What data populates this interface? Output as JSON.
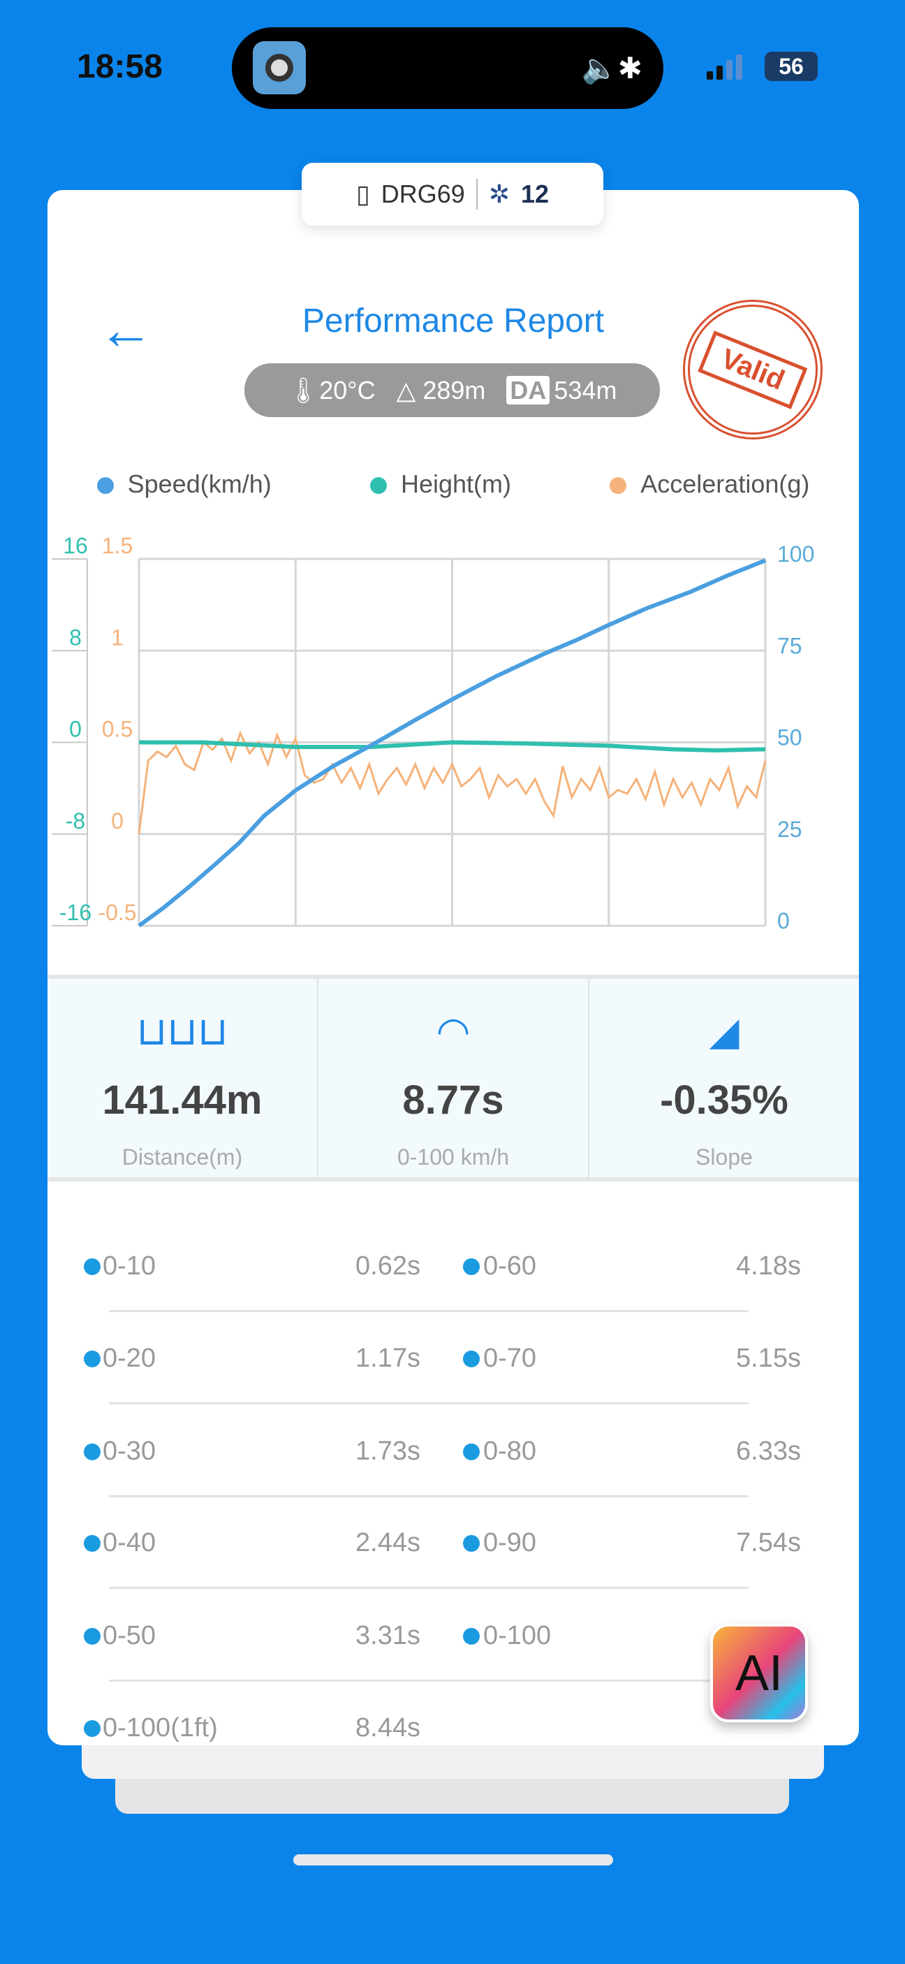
{
  "status": {
    "time": "18:58",
    "battery": "56"
  },
  "device": {
    "name": "DRG69",
    "satellites": "12"
  },
  "header": {
    "title": "Performance Report",
    "stamp": "Valid"
  },
  "env": {
    "temperature": "20°C",
    "altitude": "289m",
    "da_label": "DA",
    "density_altitude": "534m"
  },
  "chart_data": {
    "type": "line",
    "legend": [
      "Speed(km/h)",
      "Height(m)",
      "Acceleration(g)"
    ],
    "colors": {
      "speed": "#4a9fe0",
      "height": "#2fbfae",
      "accel": "#f5b27a"
    },
    "axes": {
      "height": {
        "ticks": [
          "16",
          "8",
          "0",
          "-8",
          "-16"
        ],
        "range": [
          -16,
          16
        ]
      },
      "accel": {
        "ticks": [
          "1.5",
          "1",
          "0.5",
          "0",
          "-0.5"
        ],
        "range": [
          -0.5,
          1.5
        ]
      },
      "speed": {
        "ticks": [
          "100",
          "75",
          "50",
          "25",
          "0"
        ],
        "range": [
          0,
          100
        ]
      }
    },
    "x_range": [
      0,
      100
    ],
    "speed": [
      [
        0,
        0
      ],
      [
        4,
        5
      ],
      [
        8,
        10.6
      ],
      [
        12,
        16.5
      ],
      [
        16,
        22.6
      ],
      [
        20,
        30
      ],
      [
        25,
        36.9
      ],
      [
        31,
        43.5
      ],
      [
        37.5,
        49.6
      ],
      [
        44,
        56
      ],
      [
        50,
        61.7
      ],
      [
        57,
        68
      ],
      [
        64.5,
        74
      ],
      [
        70,
        78
      ],
      [
        75,
        82
      ],
      [
        81,
        86.5
      ],
      [
        88,
        91
      ],
      [
        94,
        95.5
      ],
      [
        100,
        99.6
      ]
    ],
    "height": [
      [
        0,
        0
      ],
      [
        10,
        0
      ],
      [
        25,
        -0.4
      ],
      [
        37,
        -0.4
      ],
      [
        50,
        0
      ],
      [
        62,
        -0.1
      ],
      [
        75,
        -0.3
      ],
      [
        85,
        -0.6
      ],
      [
        92,
        -0.7
      ],
      [
        100,
        -0.6
      ]
    ],
    "accel": [
      0,
      0.4,
      0.45,
      0.42,
      0.48,
      0.38,
      0.35,
      0.5,
      0.46,
      0.52,
      0.4,
      0.55,
      0.44,
      0.5,
      0.38,
      0.54,
      0.42,
      0.52,
      0.32,
      0.28,
      0.3,
      0.38,
      0.28,
      0.36,
      0.25,
      0.38,
      0.22,
      0.3,
      0.36,
      0.27,
      0.38,
      0.25,
      0.36,
      0.28,
      0.38,
      0.26,
      0.3,
      0.36,
      0.2,
      0.32,
      0.26,
      0.3,
      0.22,
      0.3,
      0.18,
      0.1,
      0.37,
      0.2,
      0.3,
      0.24,
      0.36,
      0.2,
      0.24,
      0.22,
      0.3,
      0.19,
      0.34,
      0.16,
      0.3,
      0.2,
      0.28,
      0.16,
      0.3,
      0.24,
      0.36,
      0.15,
      0.26,
      0.2,
      0.4
    ]
  },
  "stats": [
    {
      "value": "141.44m",
      "label": "Distance(m)"
    },
    {
      "value": "8.77s",
      "label": "0-100 km/h"
    },
    {
      "value": "-0.35%",
      "label": "Slope"
    }
  ],
  "splits": [
    {
      "label": "0-10",
      "value": "0.62s"
    },
    {
      "label": "0-60",
      "value": "4.18s"
    },
    {
      "label": "0-20",
      "value": "1.17s"
    },
    {
      "label": "0-70",
      "value": "5.15s"
    },
    {
      "label": "0-30",
      "value": "1.73s"
    },
    {
      "label": "0-80",
      "value": "6.33s"
    },
    {
      "label": "0-40",
      "value": "2.44s"
    },
    {
      "label": "0-90",
      "value": "7.54s"
    },
    {
      "label": "0-50",
      "value": "3.31s"
    },
    {
      "label": "0-100",
      "value": ""
    },
    {
      "label": "0-100(1ft)",
      "value": "8.44s"
    }
  ],
  "ai_button": "AI"
}
